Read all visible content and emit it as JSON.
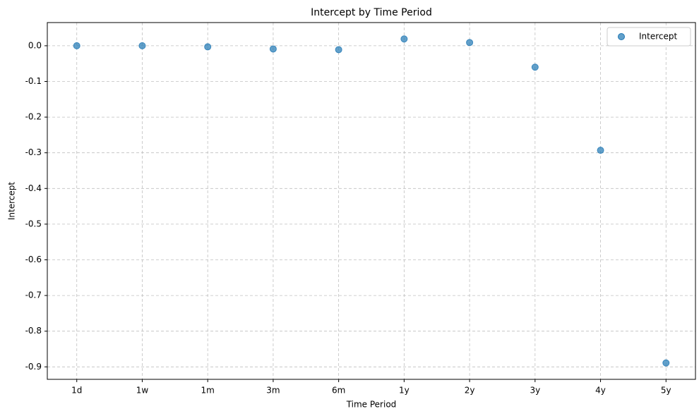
{
  "chart_data": {
    "type": "scatter",
    "title": "Intercept by Time Period",
    "x_label": "Time Period",
    "y_label": "Intercept",
    "categories": [
      "1d",
      "1w",
      "1m",
      "3m",
      "6m",
      "1y",
      "2y",
      "3y",
      "4y",
      "5y"
    ],
    "series": [
      {
        "name": "Intercept",
        "color": "#1f77b4",
        "values": [
          0.0,
          0.0,
          -0.003,
          -0.009,
          -0.011,
          0.019,
          0.009,
          -0.06,
          -0.293,
          -0.889
        ]
      }
    ],
    "ylim": [
      -0.935,
      0.065
    ],
    "yticks": [
      {
        "value": 0,
        "label": "0.0"
      },
      -0.1,
      -0.2,
      -0.3,
      -0.4,
      -0.5,
      -0.6,
      -0.7,
      -0.8,
      -0.9
    ],
    "grid": true,
    "legend": "upper-right"
  }
}
